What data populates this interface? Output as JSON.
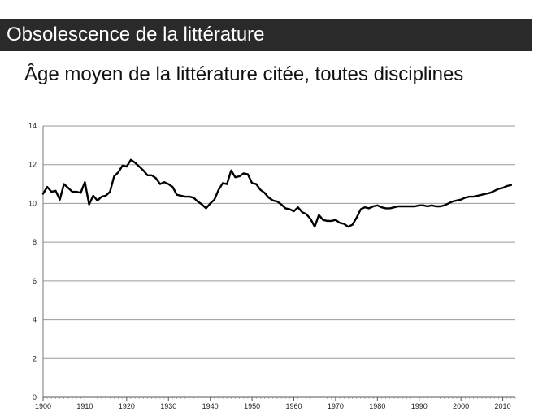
{
  "header": {
    "title": "Obsolescence de la littérature"
  },
  "chart_data": {
    "type": "line",
    "title": "Âge moyen de la littérature citée, toutes disciplines",
    "xlabel": "",
    "ylabel": "",
    "xlim": [
      1900,
      2013
    ],
    "ylim": [
      0,
      14
    ],
    "x_ticks": [
      1900,
      1910,
      1920,
      1930,
      1940,
      1950,
      1960,
      1970,
      1980,
      1990,
      2000,
      2010
    ],
    "y_ticks": [
      0,
      2,
      4,
      6,
      8,
      10,
      12,
      14
    ],
    "grid": "horizontal",
    "colors": {
      "line": "#000000",
      "grid": "#9a9a9a"
    },
    "series": [
      {
        "x": [
          1900,
          1901,
          1902,
          1903,
          1904,
          1905,
          1906,
          1907,
          1908,
          1909,
          1910,
          1911,
          1912,
          1913,
          1914,
          1915,
          1916,
          1917,
          1918,
          1919,
          1920,
          1921,
          1922,
          1923,
          1924,
          1925,
          1926,
          1927,
          1928,
          1929,
          1930,
          1931,
          1932,
          1933,
          1934,
          1935,
          1936,
          1937,
          1938,
          1939,
          1940,
          1941,
          1942,
          1943,
          1944,
          1945,
          1946,
          1947,
          1948,
          1949,
          1950,
          1951,
          1952,
          1953,
          1954,
          1955,
          1956,
          1957,
          1958,
          1959,
          1960,
          1961,
          1962,
          1963,
          1964,
          1965,
          1966,
          1967,
          1968,
          1969,
          1970,
          1971,
          1972,
          1973,
          1974,
          1975,
          1976,
          1977,
          1978,
          1979,
          1980,
          1981,
          1982,
          1983,
          1984,
          1985,
          1986,
          1987,
          1988,
          1989,
          1990,
          1991,
          1992,
          1993,
          1994,
          1995,
          1996,
          1997,
          1998,
          1999,
          2000,
          2001,
          2002,
          2003,
          2004,
          2005,
          2006,
          2007,
          2008,
          2009,
          2010,
          2011,
          2012
        ],
        "y": [
          10.5,
          10.85,
          10.6,
          10.65,
          10.2,
          11.0,
          10.8,
          10.6,
          10.6,
          10.55,
          11.1,
          9.95,
          10.4,
          10.15,
          10.35,
          10.4,
          10.6,
          11.4,
          11.6,
          11.95,
          11.9,
          12.25,
          12.1,
          11.9,
          11.7,
          11.45,
          11.45,
          11.3,
          11.0,
          11.1,
          11.0,
          10.85,
          10.45,
          10.4,
          10.35,
          10.35,
          10.3,
          10.1,
          9.95,
          9.75,
          10.0,
          10.2,
          10.7,
          11.05,
          11.0,
          11.7,
          11.35,
          11.4,
          11.55,
          11.5,
          11.05,
          11.0,
          10.7,
          10.55,
          10.3,
          10.15,
          10.1,
          9.95,
          9.75,
          9.7,
          9.6,
          9.8,
          9.55,
          9.45,
          9.2,
          8.8,
          9.4,
          9.15,
          9.1,
          9.1,
          9.15,
          9.0,
          8.95,
          8.8,
          8.9,
          9.25,
          9.7,
          9.8,
          9.75,
          9.85,
          9.9,
          9.8,
          9.75,
          9.75,
          9.8,
          9.85,
          9.85,
          9.85,
          9.85,
          9.85,
          9.9,
          9.9,
          9.85,
          9.9,
          9.85,
          9.85,
          9.9,
          10.0,
          10.1,
          10.15,
          10.2,
          10.3,
          10.35,
          10.35,
          10.4,
          10.45,
          10.5,
          10.55,
          10.65,
          10.75,
          10.8,
          10.9,
          10.95
        ]
      }
    ]
  }
}
